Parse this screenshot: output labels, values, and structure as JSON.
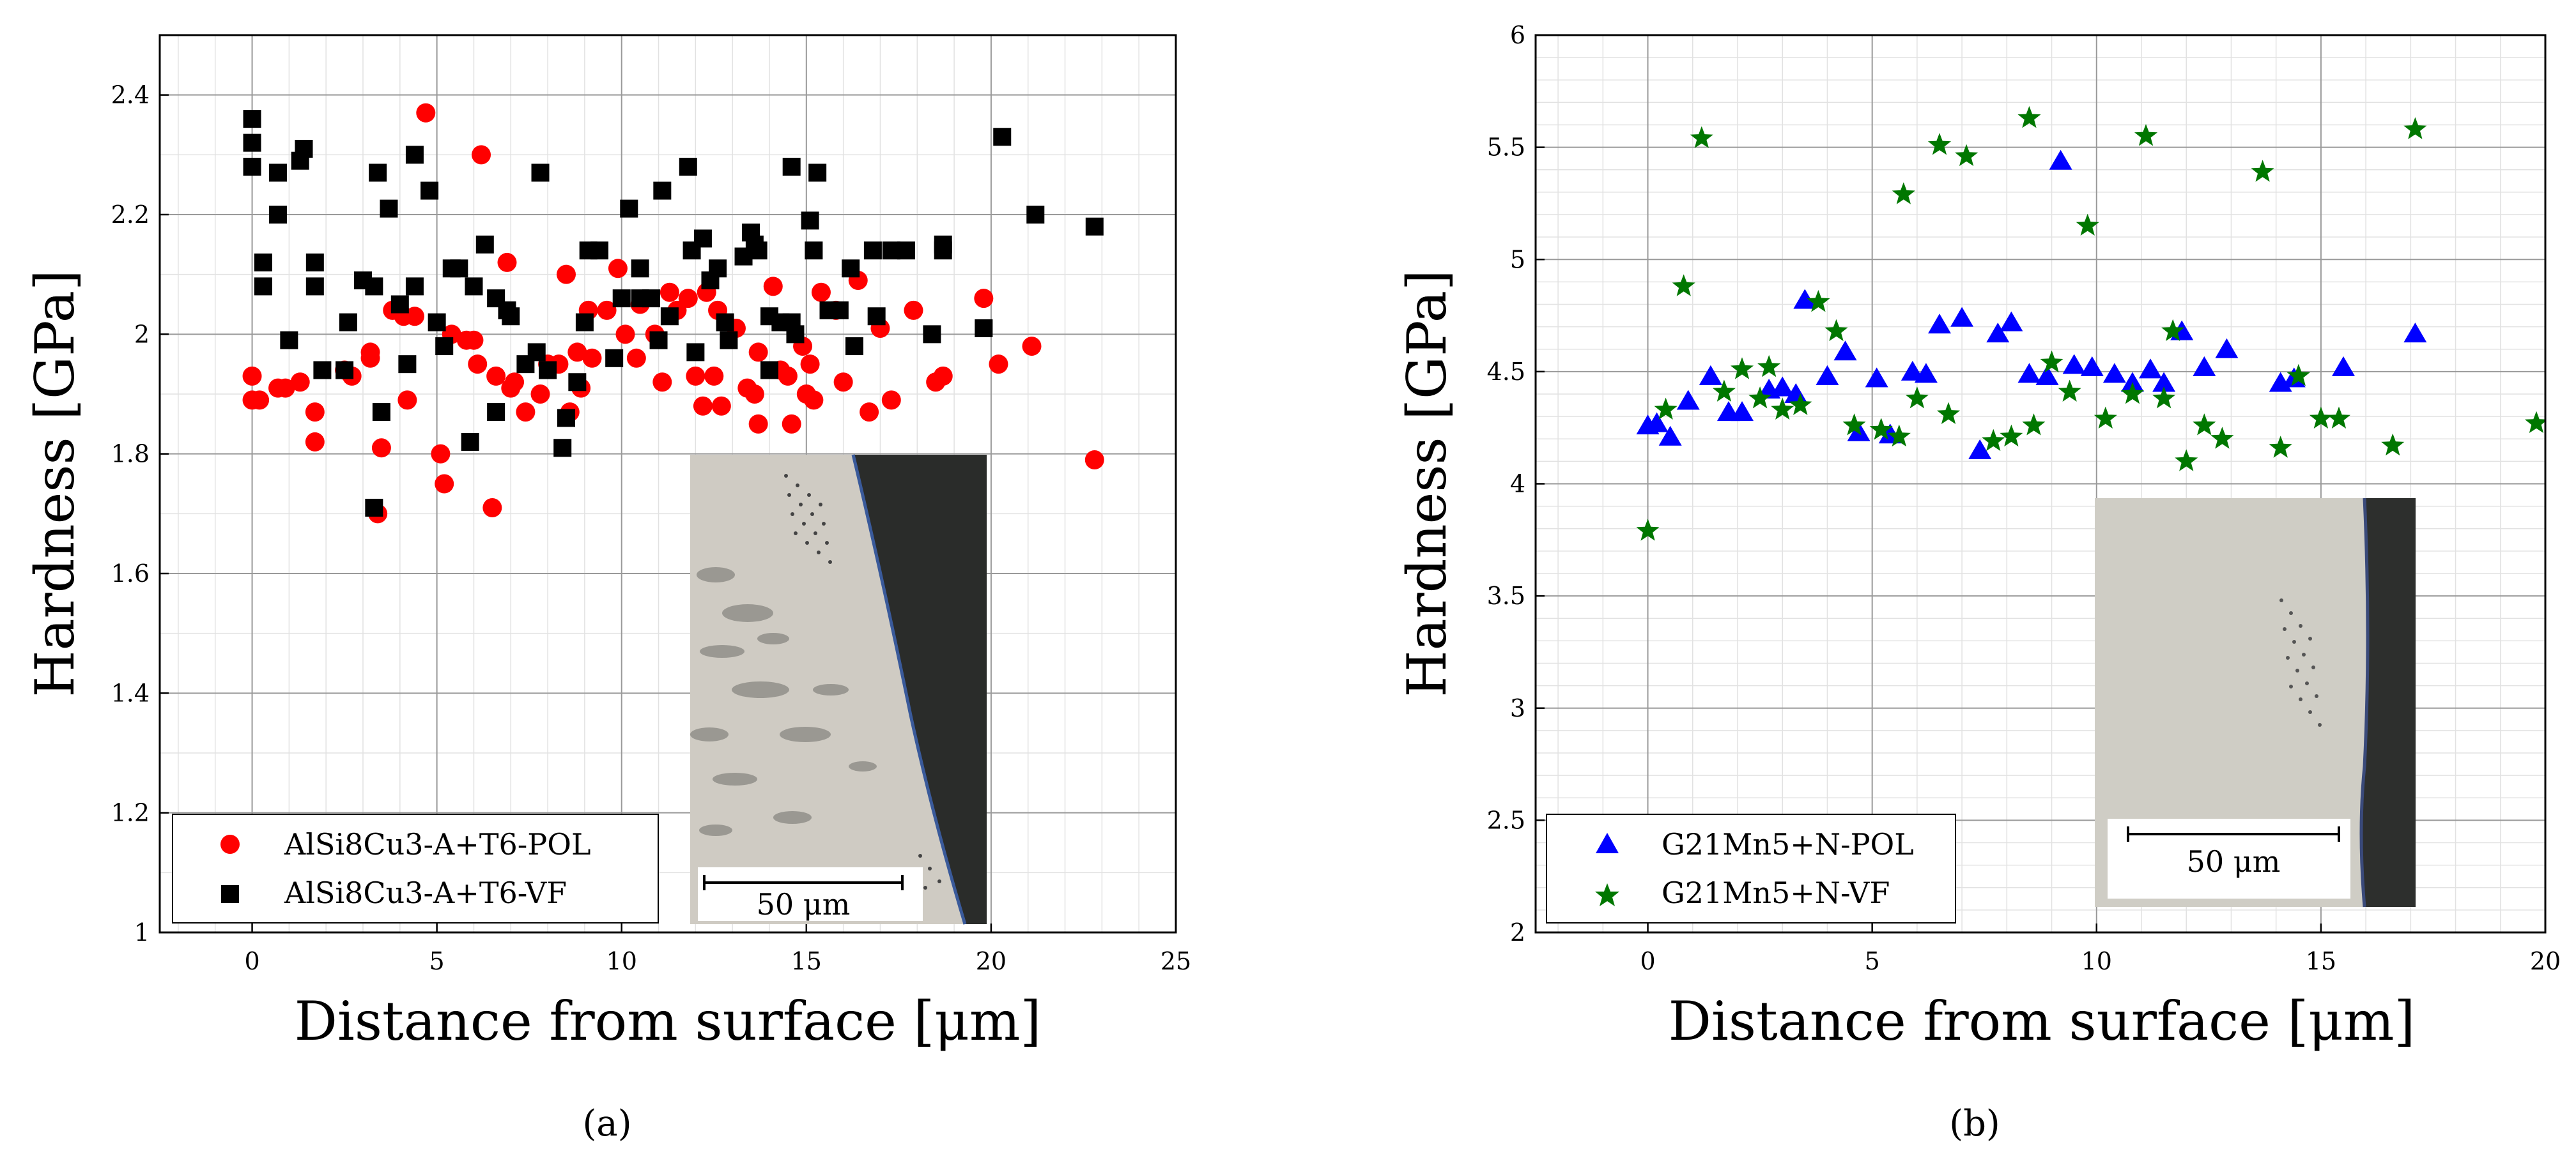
{
  "chart_data": [
    {
      "type": "scatter",
      "panel_label": "(a)",
      "xlabel": "Distance from surface [μm]",
      "ylabel": "Hardness [GPa]",
      "xlim": [
        -2.5,
        25
      ],
      "ylim": [
        1.0,
        2.5
      ],
      "xticks": [
        0,
        5,
        10,
        15,
        20,
        25
      ],
      "yticks": [
        1,
        1.2,
        1.4,
        1.6,
        1.8,
        2,
        2.2,
        2.4
      ],
      "grid": true,
      "legend_position": "bottom-left",
      "inset": {
        "description": "micrograph",
        "scale_label": "50 μm"
      },
      "series": [
        {
          "name": "AlSi8Cu3-A+T6-POL",
          "marker": "circle",
          "color": "#ff0000",
          "points": [
            [
              0,
              1.93
            ],
            [
              0,
              1.89
            ],
            [
              0.2,
              1.89
            ],
            [
              0.7,
              1.91
            ],
            [
              0.9,
              1.91
            ],
            [
              1.3,
              1.92
            ],
            [
              1.7,
              1.87
            ],
            [
              1.7,
              1.82
            ],
            [
              2.5,
              1.94
            ],
            [
              2.7,
              1.93
            ],
            [
              3.2,
              1.97
            ],
            [
              3.2,
              1.96
            ],
            [
              3.4,
              1.7
            ],
            [
              3.5,
              1.81
            ],
            [
              3.8,
              2.04
            ],
            [
              4.1,
              2.03
            ],
            [
              4.2,
              1.89
            ],
            [
              4.4,
              2.03
            ],
            [
              4.7,
              2.37
            ],
            [
              5.1,
              1.8
            ],
            [
              5.2,
              1.75
            ],
            [
              5.4,
              2.0
            ],
            [
              5.8,
              1.99
            ],
            [
              6.0,
              1.99
            ],
            [
              6.1,
              1.95
            ],
            [
              6.2,
              2.3
            ],
            [
              6.5,
              1.71
            ],
            [
              6.6,
              1.93
            ],
            [
              6.9,
              2.12
            ],
            [
              7.0,
              1.91
            ],
            [
              7.1,
              1.92
            ],
            [
              7.4,
              1.87
            ],
            [
              7.8,
              1.9
            ],
            [
              8.0,
              1.95
            ],
            [
              8.3,
              1.95
            ],
            [
              8.5,
              2.1
            ],
            [
              8.6,
              1.87
            ],
            [
              8.8,
              1.97
            ],
            [
              8.9,
              1.91
            ],
            [
              9.1,
              2.04
            ],
            [
              9.2,
              1.96
            ],
            [
              9.6,
              2.04
            ],
            [
              9.9,
              2.11
            ],
            [
              10.1,
              2.0
            ],
            [
              10.4,
              1.96
            ],
            [
              10.5,
              2.05
            ],
            [
              10.9,
              2.0
            ],
            [
              11.1,
              1.92
            ],
            [
              11.3,
              2.07
            ],
            [
              11.5,
              2.04
            ],
            [
              11.8,
              2.06
            ],
            [
              12.0,
              1.93
            ],
            [
              12.2,
              1.88
            ],
            [
              12.3,
              2.07
            ],
            [
              12.5,
              1.93
            ],
            [
              12.6,
              2.04
            ],
            [
              12.7,
              1.88
            ],
            [
              13.1,
              2.01
            ],
            [
              13.4,
              1.91
            ],
            [
              13.6,
              1.9
            ],
            [
              13.7,
              1.97
            ],
            [
              13.7,
              1.85
            ],
            [
              14.1,
              2.08
            ],
            [
              14.3,
              1.94
            ],
            [
              14.5,
              1.93
            ],
            [
              14.6,
              1.85
            ],
            [
              14.9,
              1.98
            ],
            [
              15.0,
              1.9
            ],
            [
              15.1,
              1.95
            ],
            [
              15.2,
              1.89
            ],
            [
              15.4,
              2.07
            ],
            [
              15.8,
              2.04
            ],
            [
              16.0,
              1.92
            ],
            [
              16.4,
              2.09
            ],
            [
              16.7,
              1.87
            ],
            [
              17.0,
              2.01
            ],
            [
              17.3,
              1.89
            ],
            [
              17.9,
              2.04
            ],
            [
              18.5,
              1.92
            ],
            [
              18.7,
              1.93
            ],
            [
              19.8,
              2.06
            ],
            [
              20.2,
              1.95
            ],
            [
              21.1,
              1.98
            ],
            [
              22.8,
              1.79
            ]
          ]
        },
        {
          "name": "AlSi8Cu3-A+T6-VF",
          "marker": "square",
          "color": "#000000",
          "points": [
            [
              0,
              2.36
            ],
            [
              0,
              2.32
            ],
            [
              0,
              2.28
            ],
            [
              0.3,
              2.12
            ],
            [
              0.3,
              2.08
            ],
            [
              0.7,
              2.27
            ],
            [
              0.7,
              2.2
            ],
            [
              1.0,
              1.99
            ],
            [
              1.3,
              2.29
            ],
            [
              1.4,
              2.31
            ],
            [
              1.7,
              2.12
            ],
            [
              1.7,
              2.08
            ],
            [
              1.9,
              1.94
            ],
            [
              2.5,
              1.94
            ],
            [
              2.6,
              2.02
            ],
            [
              3.0,
              2.09
            ],
            [
              3.3,
              2.08
            ],
            [
              3.3,
              1.71
            ],
            [
              3.4,
              2.27
            ],
            [
              3.5,
              1.87
            ],
            [
              3.7,
              2.21
            ],
            [
              4.0,
              2.05
            ],
            [
              4.2,
              1.95
            ],
            [
              4.4,
              2.3
            ],
            [
              4.4,
              2.08
            ],
            [
              4.8,
              2.24
            ],
            [
              5.0,
              2.02
            ],
            [
              5.2,
              1.98
            ],
            [
              5.4,
              2.11
            ],
            [
              5.6,
              2.11
            ],
            [
              5.9,
              1.82
            ],
            [
              6.0,
              2.08
            ],
            [
              6.3,
              2.15
            ],
            [
              6.6,
              2.06
            ],
            [
              6.6,
              1.87
            ],
            [
              6.9,
              2.04
            ],
            [
              7.0,
              2.03
            ],
            [
              7.4,
              1.95
            ],
            [
              7.7,
              1.97
            ],
            [
              7.8,
              2.27
            ],
            [
              8.0,
              1.94
            ],
            [
              8.4,
              1.81
            ],
            [
              8.5,
              1.86
            ],
            [
              8.8,
              1.92
            ],
            [
              9.0,
              2.02
            ],
            [
              9.1,
              2.14
            ],
            [
              9.4,
              2.14
            ],
            [
              9.8,
              1.96
            ],
            [
              10.0,
              2.06
            ],
            [
              10.2,
              2.21
            ],
            [
              10.5,
              2.11
            ],
            [
              10.5,
              2.06
            ],
            [
              10.8,
              2.06
            ],
            [
              11.0,
              1.99
            ],
            [
              11.1,
              2.24
            ],
            [
              11.3,
              2.03
            ],
            [
              11.8,
              2.28
            ],
            [
              11.9,
              2.14
            ],
            [
              12.0,
              1.97
            ],
            [
              12.2,
              2.16
            ],
            [
              12.4,
              2.09
            ],
            [
              12.6,
              2.11
            ],
            [
              12.8,
              2.02
            ],
            [
              12.9,
              1.99
            ],
            [
              13.3,
              2.13
            ],
            [
              13.5,
              2.17
            ],
            [
              13.6,
              2.15
            ],
            [
              13.7,
              2.14
            ],
            [
              14.0,
              2.03
            ],
            [
              14.0,
              1.94
            ],
            [
              14.3,
              2.02
            ],
            [
              14.6,
              2.02
            ],
            [
              14.6,
              2.28
            ],
            [
              14.7,
              2.0
            ],
            [
              15.1,
              2.19
            ],
            [
              15.2,
              2.14
            ],
            [
              15.3,
              2.27
            ],
            [
              15.6,
              2.04
            ],
            [
              15.9,
              2.04
            ],
            [
              16.2,
              2.11
            ],
            [
              16.3,
              1.98
            ],
            [
              16.8,
              2.14
            ],
            [
              16.9,
              2.03
            ],
            [
              17.3,
              2.14
            ],
            [
              17.7,
              2.14
            ],
            [
              18.4,
              2.0
            ],
            [
              18.7,
              2.14
            ],
            [
              18.7,
              2.15
            ],
            [
              19.8,
              2.01
            ],
            [
              20.3,
              2.33
            ],
            [
              21.2,
              2.2
            ],
            [
              22.8,
              2.18
            ]
          ]
        }
      ]
    },
    {
      "type": "scatter",
      "panel_label": "(b)",
      "xlabel": "Distance from surface [μm]",
      "ylabel": "Hardness [GPa]",
      "xlim": [
        -2.5,
        20
      ],
      "ylim": [
        2.0,
        6.0
      ],
      "xticks": [
        0,
        5,
        10,
        15,
        20
      ],
      "yticks": [
        2,
        2.5,
        3,
        3.5,
        4,
        4.5,
        5,
        5.5,
        6
      ],
      "grid": true,
      "legend_position": "bottom-left",
      "inset": {
        "description": "micrograph",
        "scale_label": "50 μm"
      },
      "series": [
        {
          "name": "G21Mn5+N-POL",
          "marker": "triangle",
          "color": "#0000ff",
          "points": [
            [
              0,
              4.26
            ],
            [
              0.2,
              4.27
            ],
            [
              0.5,
              4.21
            ],
            [
              0.9,
              4.37
            ],
            [
              1.4,
              4.48
            ],
            [
              1.8,
              4.32
            ],
            [
              2.1,
              4.32
            ],
            [
              2.7,
              4.42
            ],
            [
              3.0,
              4.43
            ],
            [
              3.3,
              4.4
            ],
            [
              3.5,
              4.82
            ],
            [
              4.0,
              4.48
            ],
            [
              4.4,
              4.59
            ],
            [
              4.7,
              4.23
            ],
            [
              5.1,
              4.47
            ],
            [
              5.4,
              4.22
            ],
            [
              5.9,
              4.5
            ],
            [
              6.2,
              4.49
            ],
            [
              6.5,
              4.71
            ],
            [
              7.0,
              4.74
            ],
            [
              7.4,
              4.15
            ],
            [
              7.8,
              4.67
            ],
            [
              8.1,
              4.72
            ],
            [
              8.5,
              4.49
            ],
            [
              8.9,
              4.48
            ],
            [
              9.2,
              5.44
            ],
            [
              9.5,
              4.53
            ],
            [
              9.9,
              4.52
            ],
            [
              10.4,
              4.49
            ],
            [
              10.8,
              4.45
            ],
            [
              11.2,
              4.51
            ],
            [
              11.5,
              4.45
            ],
            [
              11.9,
              4.68
            ],
            [
              12.4,
              4.52
            ],
            [
              12.9,
              4.6
            ],
            [
              14.1,
              4.45
            ],
            [
              14.4,
              4.47
            ],
            [
              15.5,
              4.52
            ],
            [
              17.1,
              4.67
            ]
          ]
        },
        {
          "name": "G21Mn5+N-VF",
          "marker": "star",
          "color": "#007700",
          "points": [
            [
              0,
              3.79
            ],
            [
              0.4,
              4.33
            ],
            [
              0.8,
              4.88
            ],
            [
              1.2,
              5.54
            ],
            [
              1.7,
              4.41
            ],
            [
              2.1,
              4.51
            ],
            [
              2.5,
              4.38
            ],
            [
              2.7,
              4.52
            ],
            [
              3.0,
              4.33
            ],
            [
              3.4,
              4.35
            ],
            [
              3.8,
              4.81
            ],
            [
              4.2,
              4.68
            ],
            [
              4.6,
              4.26
            ],
            [
              5.2,
              4.24
            ],
            [
              5.6,
              4.21
            ],
            [
              5.7,
              5.29
            ],
            [
              6.0,
              4.38
            ],
            [
              6.5,
              5.51
            ],
            [
              6.7,
              4.31
            ],
            [
              7.1,
              5.46
            ],
            [
              7.7,
              4.19
            ],
            [
              8.1,
              4.21
            ],
            [
              8.5,
              5.63
            ],
            [
              8.6,
              4.26
            ],
            [
              9.0,
              4.54
            ],
            [
              9.4,
              4.41
            ],
            [
              9.8,
              5.15
            ],
            [
              10.2,
              4.29
            ],
            [
              10.8,
              4.4
            ],
            [
              11.1,
              5.55
            ],
            [
              11.5,
              4.38
            ],
            [
              11.7,
              4.68
            ],
            [
              12.0,
              4.1
            ],
            [
              12.4,
              4.26
            ],
            [
              12.8,
              4.2
            ],
            [
              13.7,
              5.39
            ],
            [
              14.1,
              4.16
            ],
            [
              14.5,
              4.48
            ],
            [
              15.0,
              4.29
            ],
            [
              15.4,
              4.29
            ],
            [
              16.6,
              4.17
            ],
            [
              17.1,
              5.58
            ],
            [
              19.8,
              4.27
            ]
          ]
        }
      ]
    }
  ]
}
